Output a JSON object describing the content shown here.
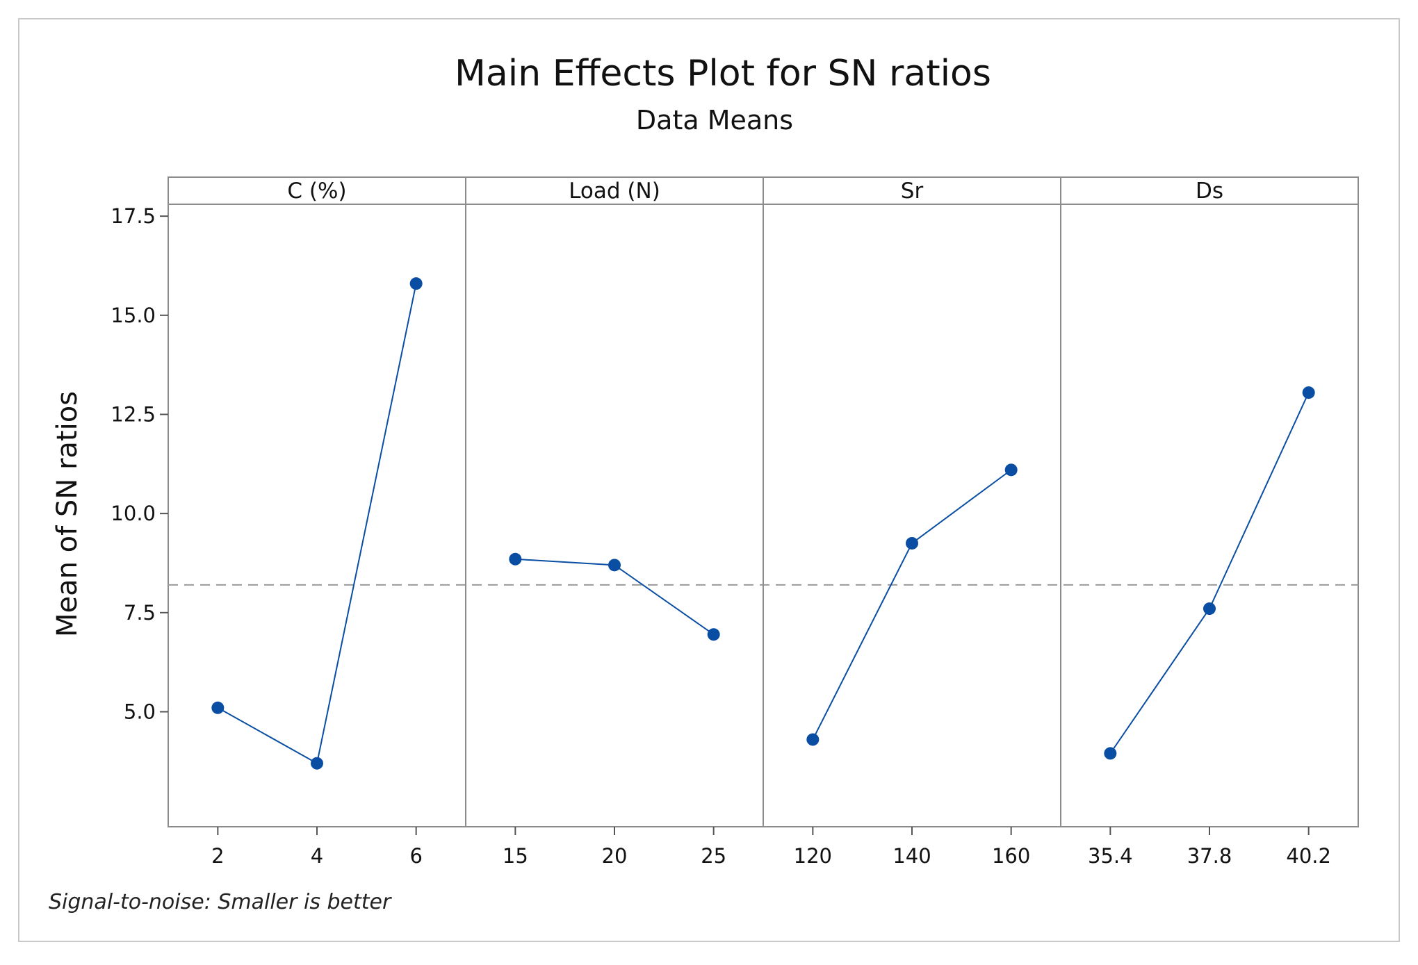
{
  "chart_data": {
    "type": "line",
    "title": "Main Effects Plot for SN ratios",
    "subtitle": "Data Means",
    "ylabel": "Mean of SN ratios",
    "ylim": [
      2.1,
      17.8
    ],
    "yticks": [
      5.0,
      7.5,
      10.0,
      12.5,
      15.0,
      17.5
    ],
    "ytick_labels": [
      "5.0",
      "7.5",
      "10.0",
      "12.5",
      "15.0",
      "17.5"
    ],
    "reference_line": 8.2,
    "footnote": "Signal-to-noise: Smaller is better",
    "panels": [
      {
        "name": "C (%)",
        "categories": [
          "2",
          "4",
          "6"
        ],
        "values": [
          5.1,
          3.7,
          15.8
        ]
      },
      {
        "name": "Load (N)",
        "categories": [
          "15",
          "20",
          "25"
        ],
        "values": [
          8.85,
          8.7,
          6.95
        ]
      },
      {
        "name": "Sr",
        "categories": [
          "120",
          "140",
          "160"
        ],
        "values": [
          4.3,
          9.25,
          11.1
        ]
      },
      {
        "name": "Ds",
        "categories": [
          "35.4",
          "37.8",
          "40.2"
        ],
        "values": [
          3.95,
          7.6,
          13.05
        ]
      }
    ]
  },
  "colors": {
    "series": "#0a4ea3",
    "frame": "#8c8c8c",
    "reference": "#9a9a9a"
  }
}
